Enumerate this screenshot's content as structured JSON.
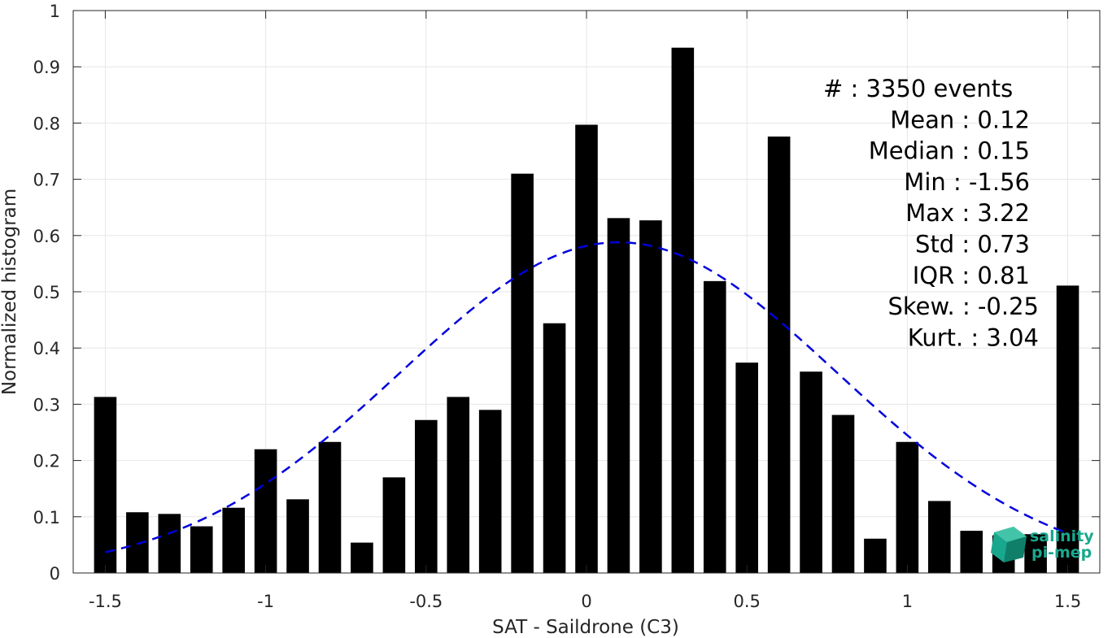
{
  "chart_data": {
    "type": "bar",
    "xlabel": "SAT - Saildrone (C3)",
    "ylabel": "Normalized histogram",
    "xlim": [
      -1.6,
      1.6
    ],
    "ylim": [
      0,
      1
    ],
    "x_ticks": [
      -1.5,
      -1,
      -0.5,
      0,
      0.5,
      1,
      1.5
    ],
    "x_tick_labels": [
      "-1.5",
      "-1",
      "-0.5",
      "0",
      "0.5",
      "1",
      "1.5"
    ],
    "y_ticks": [
      0,
      0.1,
      0.2,
      0.3,
      0.4,
      0.5,
      0.6,
      0.7,
      0.8,
      0.9,
      1
    ],
    "y_tick_labels": [
      "0",
      "0.1",
      "0.2",
      "0.3",
      "0.4",
      "0.5",
      "0.6",
      "0.7",
      "0.8",
      "0.9",
      "1"
    ],
    "grid": true,
    "bar_color": "#000000",
    "bar_width": 0.07,
    "bars": {
      "x": [
        -1.5,
        -1.4,
        -1.3,
        -1.2,
        -1.1,
        -1.0,
        -0.9,
        -0.8,
        -0.7,
        -0.6,
        -0.5,
        -0.4,
        -0.3,
        -0.2,
        -0.1,
        0.0,
        0.1,
        0.2,
        0.3,
        0.4,
        0.5,
        0.6,
        0.7,
        0.8,
        0.9,
        1.0,
        1.1,
        1.2,
        1.3,
        1.4,
        1.5
      ],
      "values": [
        0.313,
        0.108,
        0.105,
        0.083,
        0.116,
        0.22,
        0.131,
        0.233,
        0.054,
        0.17,
        0.272,
        0.313,
        0.29,
        0.71,
        0.444,
        0.797,
        0.631,
        0.627,
        0.934,
        0.519,
        0.374,
        0.776,
        0.358,
        0.281,
        0.061,
        0.233,
        0.128,
        0.075,
        0.067,
        0.069,
        0.511
      ]
    },
    "fit_curve": {
      "type": "normal",
      "mean": 0.1,
      "std": 0.68,
      "peak": 0.588,
      "x_range": [
        -1.5,
        1.5
      ],
      "color": "#0000dd",
      "style": "dashed"
    },
    "stats": [
      {
        "label": "#  : 3350 events",
        "align": "left"
      },
      {
        "label": "Mean : 0.12",
        "align": "right"
      },
      {
        "label": "Median : 0.15",
        "align": "right"
      },
      {
        "label": "Min : -1.56",
        "align": "right"
      },
      {
        "label": "Max : 3.22",
        "align": "right"
      },
      {
        "label": "Std : 0.73",
        "align": "right"
      },
      {
        "label": "IQR : 0.81",
        "align": "right"
      },
      {
        "label": "Skew. : -0.25",
        "align": "right"
      },
      {
        "label": "Kurt. : 3.04",
        "align": "right"
      }
    ]
  },
  "logo": {
    "line1": "salinity",
    "line2": "pi-mep",
    "color": "#19a88e"
  }
}
